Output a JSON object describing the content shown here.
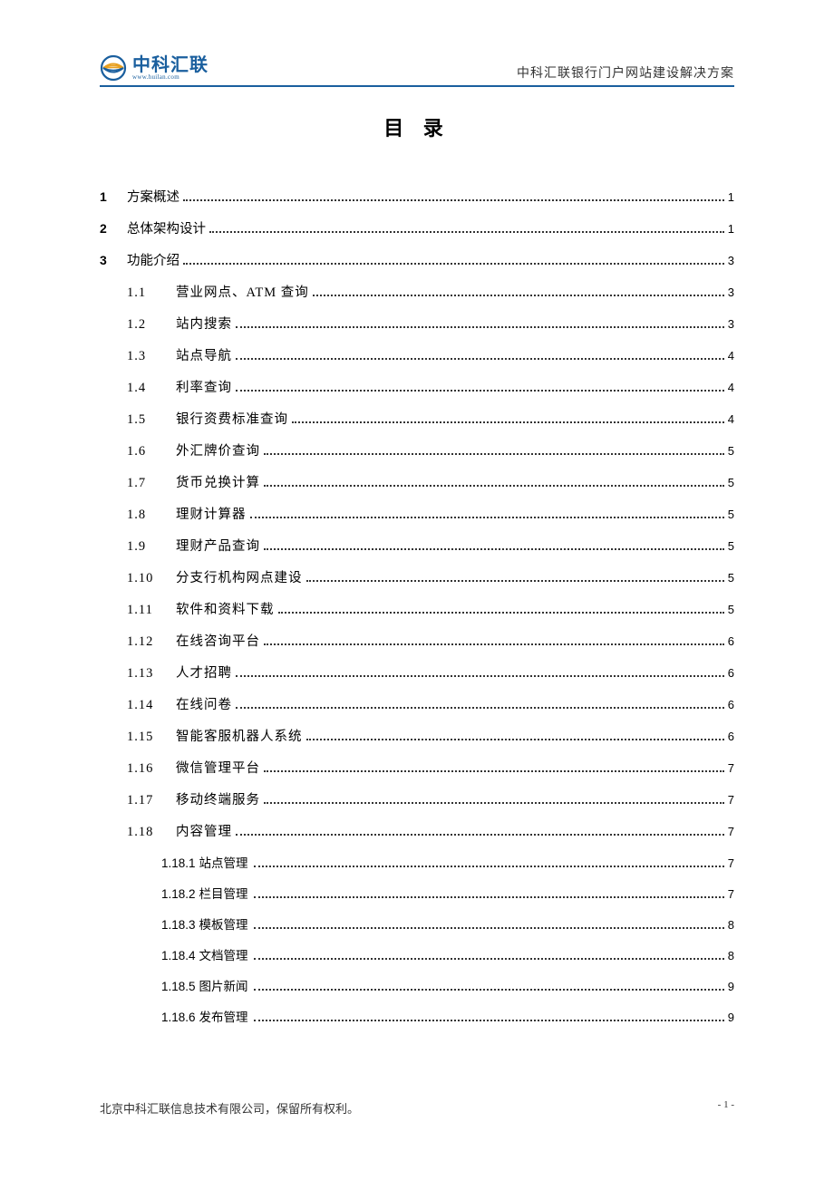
{
  "header": {
    "logo_cn": "中科汇联",
    "logo_url": "www.huilan.com",
    "doc_title": "中科汇联银行门户网站建设解决方案"
  },
  "toc_title": "目 录",
  "toc": {
    "level1": [
      {
        "num": "1",
        "label": "方案概述",
        "page": "1"
      },
      {
        "num": "2",
        "label": "总体架构设计",
        "page": "1"
      },
      {
        "num": "3",
        "label": "功能介绍",
        "page": "3"
      }
    ],
    "level2": [
      {
        "num": "1.1",
        "label": "营业网点、ATM 查询",
        "page": "3"
      },
      {
        "num": "1.2",
        "label": "站内搜索",
        "page": "3"
      },
      {
        "num": "1.3",
        "label": "站点导航",
        "page": "4"
      },
      {
        "num": "1.4",
        "label": "利率查询",
        "page": "4"
      },
      {
        "num": "1.5",
        "label": "银行资费标准查询",
        "page": "4"
      },
      {
        "num": "1.6",
        "label": "外汇牌价查询",
        "page": "5"
      },
      {
        "num": "1.7",
        "label": "货币兑换计算",
        "page": "5"
      },
      {
        "num": "1.8",
        "label": "理财计算器",
        "page": "5"
      },
      {
        "num": "1.9",
        "label": "理财产品查询",
        "page": "5"
      },
      {
        "num": "1.10",
        "label": "分支行机构网点建设",
        "page": "5"
      },
      {
        "num": "1.11",
        "label": "软件和资料下载",
        "page": "5"
      },
      {
        "num": "1.12",
        "label": "在线咨询平台",
        "page": "6"
      },
      {
        "num": "1.13",
        "label": "人才招聘",
        "page": "6"
      },
      {
        "num": "1.14",
        "label": "在线问卷",
        "page": "6"
      },
      {
        "num": "1.15",
        "label": "智能客服机器人系统",
        "page": "6"
      },
      {
        "num": "1.16",
        "label": "微信管理平台",
        "page": "7"
      },
      {
        "num": "1.17",
        "label": "移动终端服务",
        "page": "7"
      },
      {
        "num": "1.18",
        "label": "内容管理",
        "page": "7"
      }
    ],
    "level3": [
      {
        "num": "1.18.1",
        "label": "站点管理",
        "page": "7"
      },
      {
        "num": "1.18.2",
        "label": "栏目管理",
        "page": "7"
      },
      {
        "num": "1.18.3",
        "label": "模板管理",
        "page": "8"
      },
      {
        "num": "1.18.4",
        "label": "文档管理",
        "page": "8"
      },
      {
        "num": "1.18.5",
        "label": "图片新闻",
        "page": "9"
      },
      {
        "num": "1.18.6",
        "label": "发布管理",
        "page": "9"
      }
    ]
  },
  "footer": {
    "copyright": "北京中科汇联信息技术有限公司，保留所有权利。",
    "page_number": "- 1 -"
  },
  "colors": {
    "brand": "#1a5f9e",
    "text": "#000000",
    "border": "#1a5f9e"
  }
}
